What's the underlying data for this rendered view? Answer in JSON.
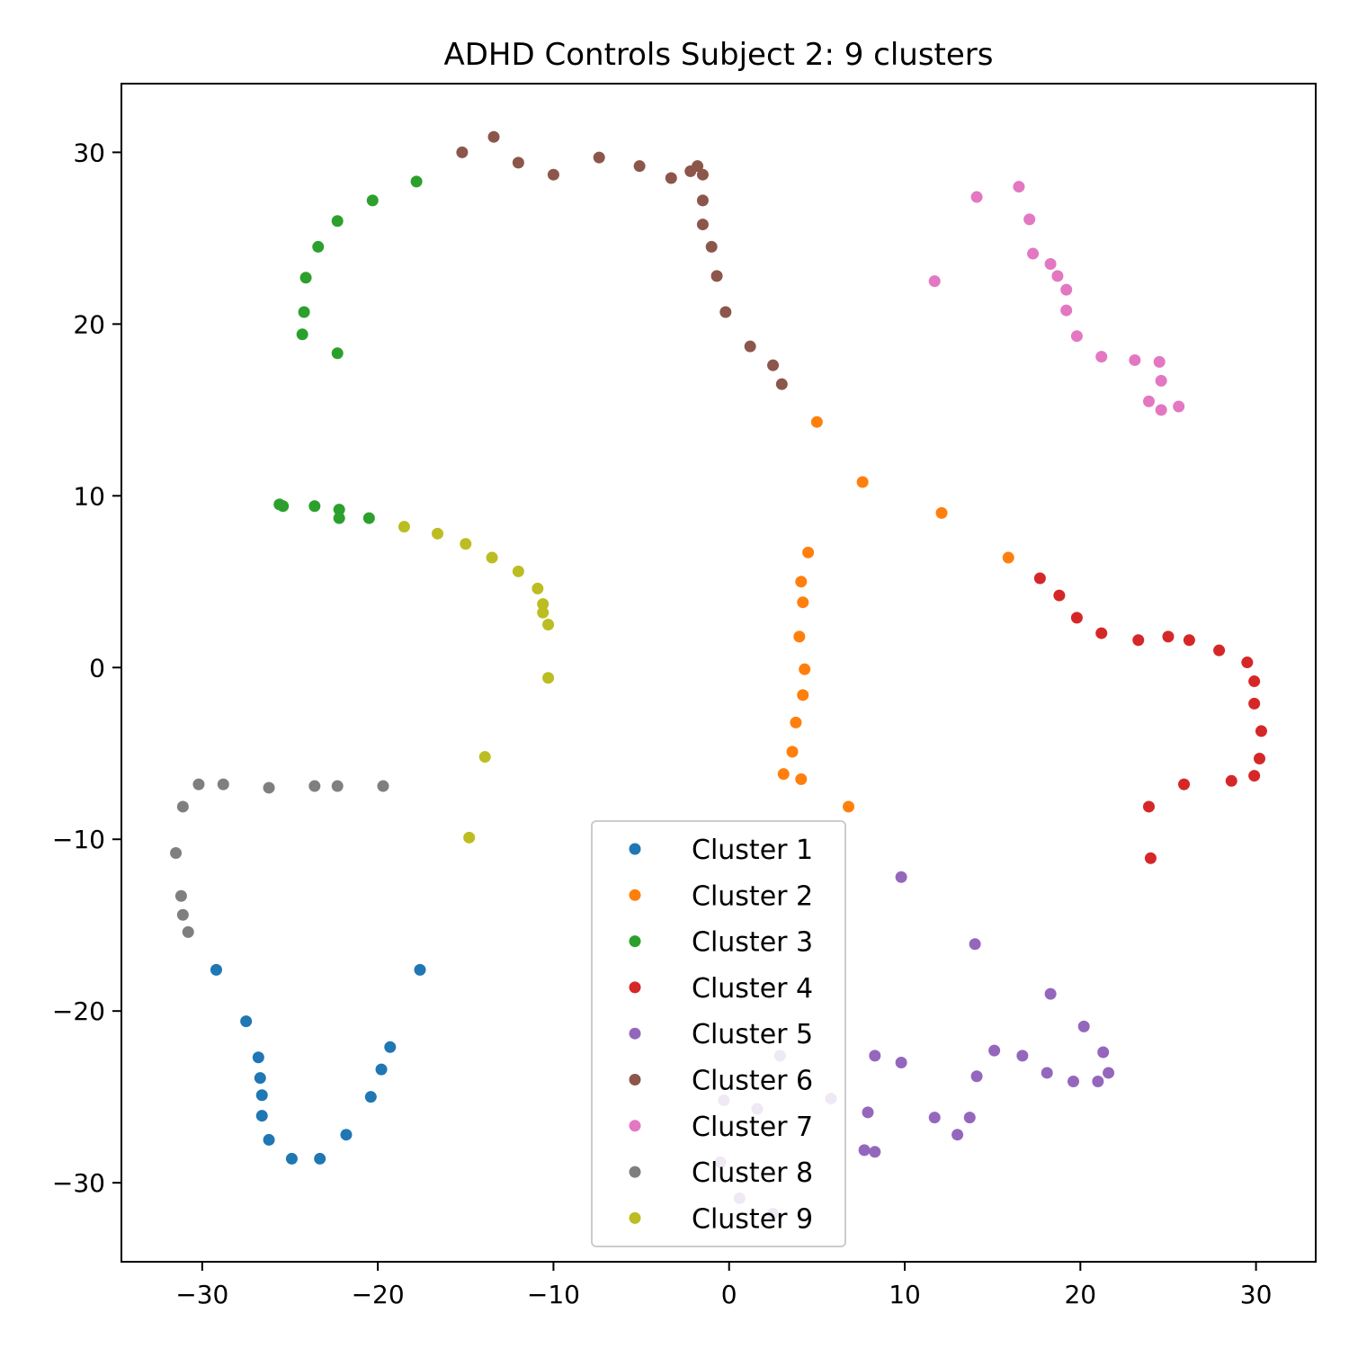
{
  "chart_data": {
    "type": "scatter",
    "title": "ADHD Controls Subject 2: 9 clusters",
    "xlabel": "",
    "ylabel": "",
    "xlim": [
      -34.6,
      33.4
    ],
    "ylim": [
      -34.6,
      34.0
    ],
    "xticks": [
      -30,
      -20,
      -10,
      0,
      10,
      20,
      30
    ],
    "yticks": [
      -30,
      -20,
      -10,
      0,
      10,
      20,
      30
    ],
    "xtick_labels": [
      "−30",
      "−20",
      "−10",
      "0",
      "10",
      "20",
      "30"
    ],
    "ytick_labels": [
      "−30",
      "−20",
      "−10",
      "0",
      "10",
      "20",
      "30"
    ],
    "grid": false,
    "legend_position": "bottom-center",
    "series": [
      {
        "name": "Cluster 1",
        "color": "#1f77b4",
        "points": [
          [
            -29.2,
            -17.6
          ],
          [
            -17.6,
            -17.6
          ],
          [
            -27.5,
            -20.6
          ],
          [
            -19.3,
            -22.1
          ],
          [
            -26.8,
            -22.7
          ],
          [
            -26.7,
            -23.9
          ],
          [
            -19.8,
            -23.4
          ],
          [
            -26.6,
            -24.9
          ],
          [
            -20.4,
            -25.0
          ],
          [
            -26.6,
            -26.1
          ],
          [
            -26.2,
            -27.5
          ],
          [
            -21.8,
            -27.2
          ],
          [
            -24.9,
            -28.6
          ],
          [
            -23.3,
            -28.6
          ]
        ]
      },
      {
        "name": "Cluster 2",
        "color": "#ff7f0e",
        "points": [
          [
            5.0,
            14.3
          ],
          [
            7.6,
            10.8
          ],
          [
            12.1,
            9.0
          ],
          [
            4.5,
            6.7
          ],
          [
            15.9,
            6.4
          ],
          [
            4.1,
            5.0
          ],
          [
            4.2,
            3.8
          ],
          [
            4.0,
            1.8
          ],
          [
            4.3,
            -0.1
          ],
          [
            4.2,
            -1.6
          ],
          [
            3.8,
            -3.2
          ],
          [
            3.6,
            -4.9
          ],
          [
            3.1,
            -6.2
          ],
          [
            4.1,
            -6.5
          ],
          [
            6.8,
            -8.1
          ]
        ]
      },
      {
        "name": "Cluster 3",
        "color": "#2ca02c",
        "points": [
          [
            -17.8,
            28.3
          ],
          [
            -20.3,
            27.2
          ],
          [
            -22.3,
            26.0
          ],
          [
            -23.4,
            24.5
          ],
          [
            -24.1,
            22.7
          ],
          [
            -24.2,
            20.7
          ],
          [
            -24.3,
            19.4
          ],
          [
            -22.3,
            18.3
          ],
          [
            -25.6,
            9.5
          ],
          [
            -25.4,
            9.4
          ],
          [
            -23.6,
            9.4
          ],
          [
            -22.2,
            9.2
          ],
          [
            -22.2,
            8.7
          ],
          [
            -20.5,
            8.7
          ]
        ]
      },
      {
        "name": "Cluster 4",
        "color": "#d62728",
        "points": [
          [
            17.7,
            5.2
          ],
          [
            18.8,
            4.2
          ],
          [
            19.8,
            2.9
          ],
          [
            21.2,
            2.0
          ],
          [
            23.3,
            1.6
          ],
          [
            25.0,
            1.8
          ],
          [
            26.2,
            1.6
          ],
          [
            27.9,
            1.0
          ],
          [
            29.5,
            0.3
          ],
          [
            29.9,
            -0.8
          ],
          [
            29.9,
            -2.1
          ],
          [
            30.3,
            -3.7
          ],
          [
            30.2,
            -5.3
          ],
          [
            29.9,
            -6.3
          ],
          [
            28.6,
            -6.6
          ],
          [
            25.9,
            -6.8
          ],
          [
            23.9,
            -8.1
          ],
          [
            24.0,
            -11.1
          ]
        ]
      },
      {
        "name": "Cluster 5",
        "color": "#9467bd",
        "points": [
          [
            9.8,
            -12.2
          ],
          [
            14.0,
            -16.1
          ],
          [
            18.3,
            -19.0
          ],
          [
            20.2,
            -20.9
          ],
          [
            21.3,
            -22.4
          ],
          [
            15.1,
            -22.3
          ],
          [
            16.7,
            -22.6
          ],
          [
            8.3,
            -22.6
          ],
          [
            9.8,
            -23.0
          ],
          [
            2.9,
            -22.6
          ],
          [
            18.1,
            -23.6
          ],
          [
            21.6,
            -23.6
          ],
          [
            14.1,
            -23.8
          ],
          [
            19.6,
            -24.1
          ],
          [
            21.0,
            -24.1
          ],
          [
            5.8,
            -25.1
          ],
          [
            1.6,
            -25.7
          ],
          [
            -0.3,
            -25.2
          ],
          [
            7.9,
            -25.9
          ],
          [
            11.7,
            -26.2
          ],
          [
            13.7,
            -26.2
          ],
          [
            13.0,
            -27.2
          ],
          [
            7.7,
            -28.1
          ],
          [
            8.3,
            -28.2
          ],
          [
            -0.5,
            -28.8
          ],
          [
            0.6,
            -30.9
          ],
          [
            2.5,
            -31.8
          ]
        ]
      },
      {
        "name": "Cluster 6",
        "color": "#8c564b",
        "points": [
          [
            -13.4,
            30.9
          ],
          [
            -15.2,
            30.0
          ],
          [
            -12.0,
            29.4
          ],
          [
            -7.4,
            29.7
          ],
          [
            -5.1,
            29.2
          ],
          [
            -10.0,
            28.7
          ],
          [
            -3.3,
            28.5
          ],
          [
            -1.8,
            29.2
          ],
          [
            -2.2,
            28.9
          ],
          [
            -1.5,
            28.7
          ],
          [
            -1.5,
            27.2
          ],
          [
            -1.5,
            25.8
          ],
          [
            -1.0,
            24.5
          ],
          [
            -0.7,
            22.8
          ],
          [
            -0.2,
            20.7
          ],
          [
            1.2,
            18.7
          ],
          [
            2.5,
            17.6
          ],
          [
            3.0,
            16.5
          ]
        ]
      },
      {
        "name": "Cluster 7",
        "color": "#e377c2",
        "points": [
          [
            16.5,
            28.0
          ],
          [
            14.1,
            27.4
          ],
          [
            17.1,
            26.1
          ],
          [
            17.3,
            24.1
          ],
          [
            18.3,
            23.5
          ],
          [
            18.7,
            22.8
          ],
          [
            19.2,
            22.0
          ],
          [
            19.2,
            20.8
          ],
          [
            11.7,
            22.5
          ],
          [
            19.8,
            19.3
          ],
          [
            21.2,
            18.1
          ],
          [
            23.1,
            17.9
          ],
          [
            24.5,
            17.8
          ],
          [
            24.6,
            16.7
          ],
          [
            23.9,
            15.5
          ],
          [
            24.6,
            15.0
          ],
          [
            25.6,
            15.2
          ]
        ]
      },
      {
        "name": "Cluster 8",
        "color": "#7f7f7f",
        "points": [
          [
            -30.2,
            -6.8
          ],
          [
            -28.8,
            -6.8
          ],
          [
            -26.2,
            -7.0
          ],
          [
            -23.6,
            -6.9
          ],
          [
            -22.3,
            -6.9
          ],
          [
            -19.7,
            -6.9
          ],
          [
            -31.1,
            -8.1
          ],
          [
            -31.5,
            -10.8
          ],
          [
            -31.2,
            -13.3
          ],
          [
            -31.1,
            -14.4
          ],
          [
            -30.8,
            -15.4
          ]
        ]
      },
      {
        "name": "Cluster 9",
        "color": "#bcbd22",
        "points": [
          [
            -18.5,
            8.2
          ],
          [
            -16.6,
            7.8
          ],
          [
            -15.0,
            7.2
          ],
          [
            -13.5,
            6.4
          ],
          [
            -12.0,
            5.6
          ],
          [
            -10.9,
            4.6
          ],
          [
            -10.6,
            3.7
          ],
          [
            -10.6,
            3.2
          ],
          [
            -10.3,
            2.5
          ],
          [
            -10.3,
            -0.6
          ],
          [
            -13.9,
            -5.2
          ],
          [
            -14.8,
            -9.9
          ]
        ]
      }
    ]
  }
}
